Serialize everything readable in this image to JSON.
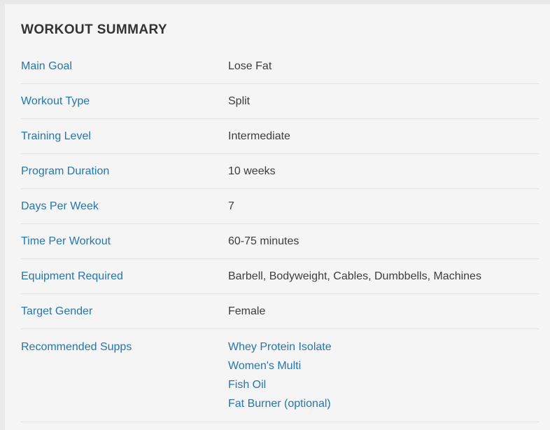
{
  "title": "WORKOUT SUMMARY",
  "colors": {
    "page_background": "#e9e9e9",
    "card_background": "#f5f5f5",
    "separator": "#e3e3e3",
    "label_blue": "#2775ae",
    "link_blue": "#2775ae",
    "value_gray": "#3d3d3d",
    "title_color": "#333333"
  },
  "summary_rows": [
    {
      "label": "Main Goal",
      "value": "Lose Fat"
    },
    {
      "label": "Workout Type",
      "value": "Split"
    },
    {
      "label": "Training Level",
      "value": "Intermediate"
    },
    {
      "label": "Program Duration",
      "value": "10 weeks"
    },
    {
      "label": "Days Per Week",
      "value": "7"
    },
    {
      "label": "Time Per Workout",
      "value": "60-75 minutes"
    },
    {
      "label": "Equipment Required",
      "value": "Barbell, Bodyweight, Cables, Dumbbells, Machines"
    },
    {
      "label": "Target Gender",
      "value": "Female"
    }
  ],
  "supps_row": {
    "label": "Recommended Supps",
    "links": [
      "Whey Protein Isolate",
      "Women's Multi",
      "Fish Oil",
      "Fat Burner (optional)"
    ]
  }
}
